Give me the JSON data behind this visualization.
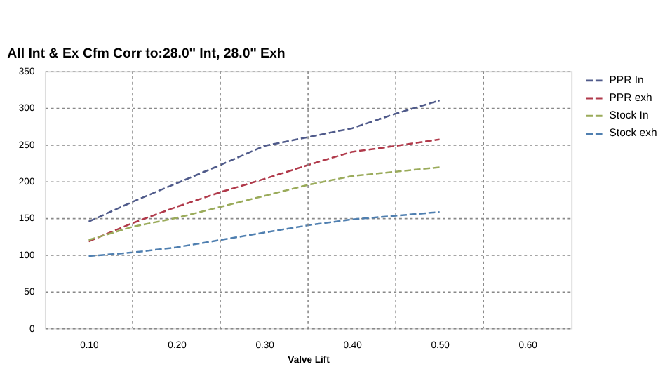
{
  "chart_data": {
    "type": "line",
    "title": "All Int & Ex Cfm   Corr to:28.0'' Int,  28.0'' Exh",
    "xlabel": "Valve Lift",
    "x": [
      0.1,
      0.15,
      0.2,
      0.25,
      0.3,
      0.35,
      0.4,
      0.45,
      0.5
    ],
    "series": [
      {
        "name": "PPR In",
        "color": "#4f5a8a",
        "values": [
          145,
          172,
          197,
          222,
          248,
          260,
          272,
          292,
          310
        ]
      },
      {
        "name": "PPR exh",
        "color": "#b0394a",
        "values": [
          118,
          143,
          165,
          185,
          203,
          222,
          240,
          248,
          257
        ]
      },
      {
        "name": "Stock In",
        "color": "#9aab5a",
        "values": [
          120,
          138,
          150,
          165,
          180,
          195,
          207,
          213,
          219
        ]
      },
      {
        "name": "Stock exh",
        "color": "#4f7fb0",
        "values": [
          98,
          103,
          110,
          120,
          130,
          140,
          148,
          153,
          158
        ]
      }
    ],
    "xlim": [
      0.05,
      0.65
    ],
    "xticks": [
      {
        "value": 0.1,
        "label": "0.10"
      },
      {
        "value": 0.15,
        "label": null
      },
      {
        "value": 0.2,
        "label": "0.20"
      },
      {
        "value": 0.25,
        "label": null
      },
      {
        "value": 0.3,
        "label": "0.30"
      },
      {
        "value": 0.35,
        "label": null
      },
      {
        "value": 0.4,
        "label": "0.40"
      },
      {
        "value": 0.45,
        "label": null
      },
      {
        "value": 0.5,
        "label": "0.50"
      },
      {
        "value": 0.55,
        "label": null
      },
      {
        "value": 0.6,
        "label": "0.60"
      }
    ],
    "ylim": [
      0,
      350
    ],
    "yticks": [
      0,
      50,
      100,
      150,
      200,
      250,
      300,
      350
    ],
    "grid": true,
    "legend": "right",
    "marker": "none",
    "line_style": "dashed"
  }
}
